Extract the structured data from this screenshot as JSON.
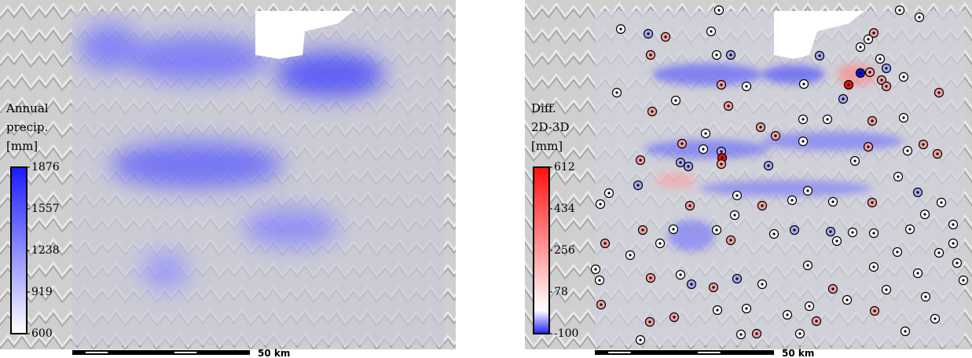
{
  "panels": [
    {
      "legend": {
        "title_lines": [
          "Annual",
          "precip.",
          "[mm]"
        ],
        "lim": [
          600,
          1876
        ],
        "ticks": [
          1876,
          1557,
          1238,
          919,
          600
        ]
      },
      "scale_bar": "50 km"
    },
    {
      "legend": {
        "title_lines": [
          "Diff.",
          "2D-3D",
          "[mm]"
        ],
        "lim": [
          -100,
          612
        ],
        "ticks": [
          612,
          434,
          256,
          78,
          -100
        ]
      },
      "scale_bar": "50 km"
    }
  ]
}
